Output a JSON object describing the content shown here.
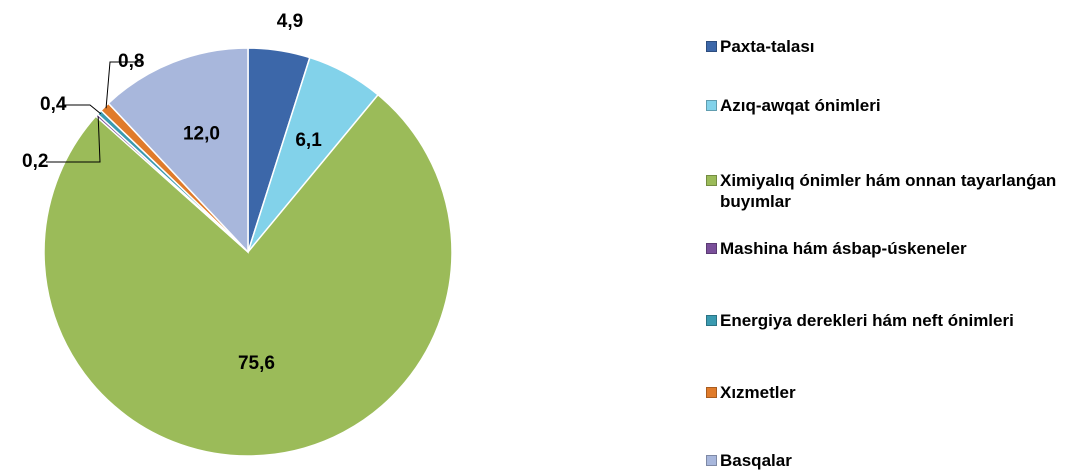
{
  "chart_data": {
    "type": "pie",
    "categories": [
      "Paxta-talası",
      "Azıq-awqat ónimleri",
      "Ximiyalıq ónimler hám onnan tayarlanǵan buyımlar",
      "Mashina hám ásbap-úskeneler",
      "Energiya derekleri hám neft ónimleri",
      "Xızmetler",
      "Basqalar"
    ],
    "values": [
      4.9,
      6.1,
      75.6,
      0.2,
      0.4,
      0.8,
      12.0
    ],
    "value_labels": [
      "4,9",
      "6,1",
      "75,6",
      "0,2",
      "0,4",
      "0,8",
      "12,0"
    ],
    "colors": [
      "#3c67a9",
      "#82d2ea",
      "#9bbb59",
      "#7a4f9a",
      "#3a9ab0",
      "#e07b2a",
      "#a8b7dc"
    ],
    "legend": "right"
  }
}
